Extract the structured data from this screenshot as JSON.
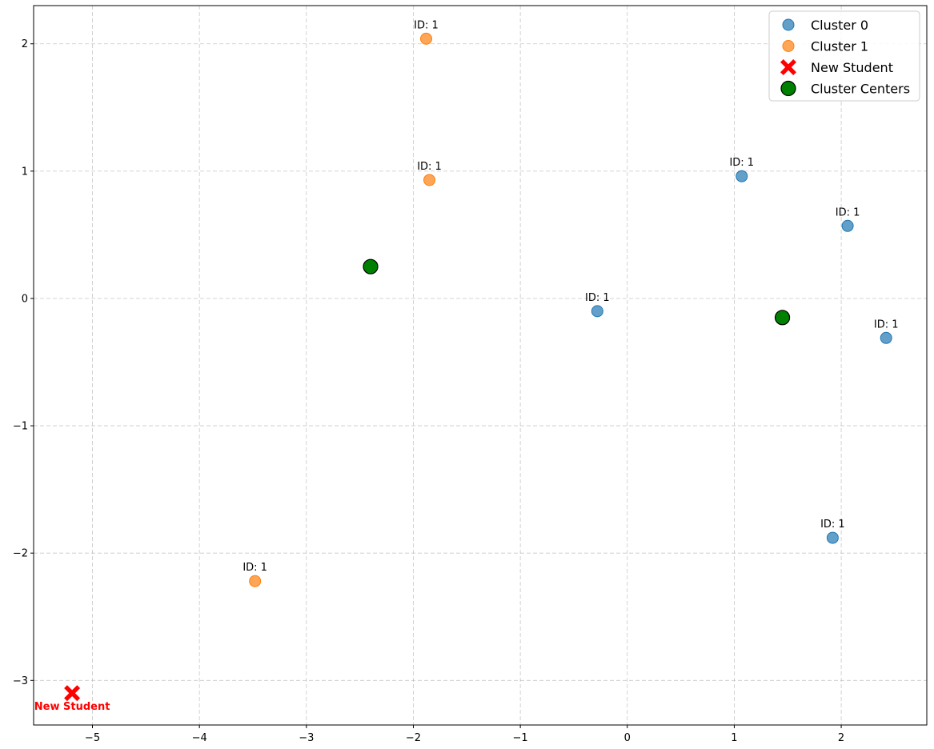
{
  "chart_data": {
    "type": "scatter",
    "title": "",
    "xlabel": "",
    "ylabel": "",
    "xlim": [
      -5.55,
      2.8
    ],
    "ylim": [
      -3.35,
      2.3
    ],
    "xticks": [
      -5,
      -4,
      -3,
      -2,
      -1,
      0,
      1,
      2
    ],
    "yticks": [
      -3,
      -2,
      -1,
      0,
      1,
      2
    ],
    "xtick_labels": [
      "−5",
      "−4",
      "−3",
      "−2",
      "−1",
      "0",
      "1",
      "2"
    ],
    "ytick_labels": [
      "−3",
      "−2",
      "−1",
      "0",
      "1",
      "2"
    ],
    "grid": true,
    "legend_position": "top-right",
    "series": [
      {
        "name": "Cluster 0",
        "color": "#1f77b4",
        "marker": "circle",
        "points": [
          {
            "x": 1.07,
            "y": 0.96,
            "label": "ID: 1"
          },
          {
            "x": 2.06,
            "y": 0.57,
            "label": "ID: 1"
          },
          {
            "x": -0.28,
            "y": -0.1,
            "label": "ID: 1"
          },
          {
            "x": 2.42,
            "y": -0.31,
            "label": "ID: 1"
          },
          {
            "x": 1.92,
            "y": -1.88,
            "label": "ID: 1"
          }
        ]
      },
      {
        "name": "Cluster 1",
        "color": "#ff7f0e",
        "marker": "circle",
        "points": [
          {
            "x": -1.88,
            "y": 2.04,
            "label": "ID: 1"
          },
          {
            "x": -1.85,
            "y": 0.93,
            "label": "ID: 1"
          },
          {
            "x": -3.48,
            "y": -2.22,
            "label": "ID: 1"
          }
        ]
      },
      {
        "name": "New Student",
        "color": "#ff0000",
        "marker": "x",
        "points": [
          {
            "x": -5.19,
            "y": -3.1,
            "label": "New Student"
          }
        ]
      },
      {
        "name": "Cluster Centers",
        "color": "#008000",
        "marker": "circle-outlined",
        "points": [
          {
            "x": -2.4,
            "y": 0.25
          },
          {
            "x": 1.45,
            "y": -0.15
          }
        ]
      }
    ]
  }
}
